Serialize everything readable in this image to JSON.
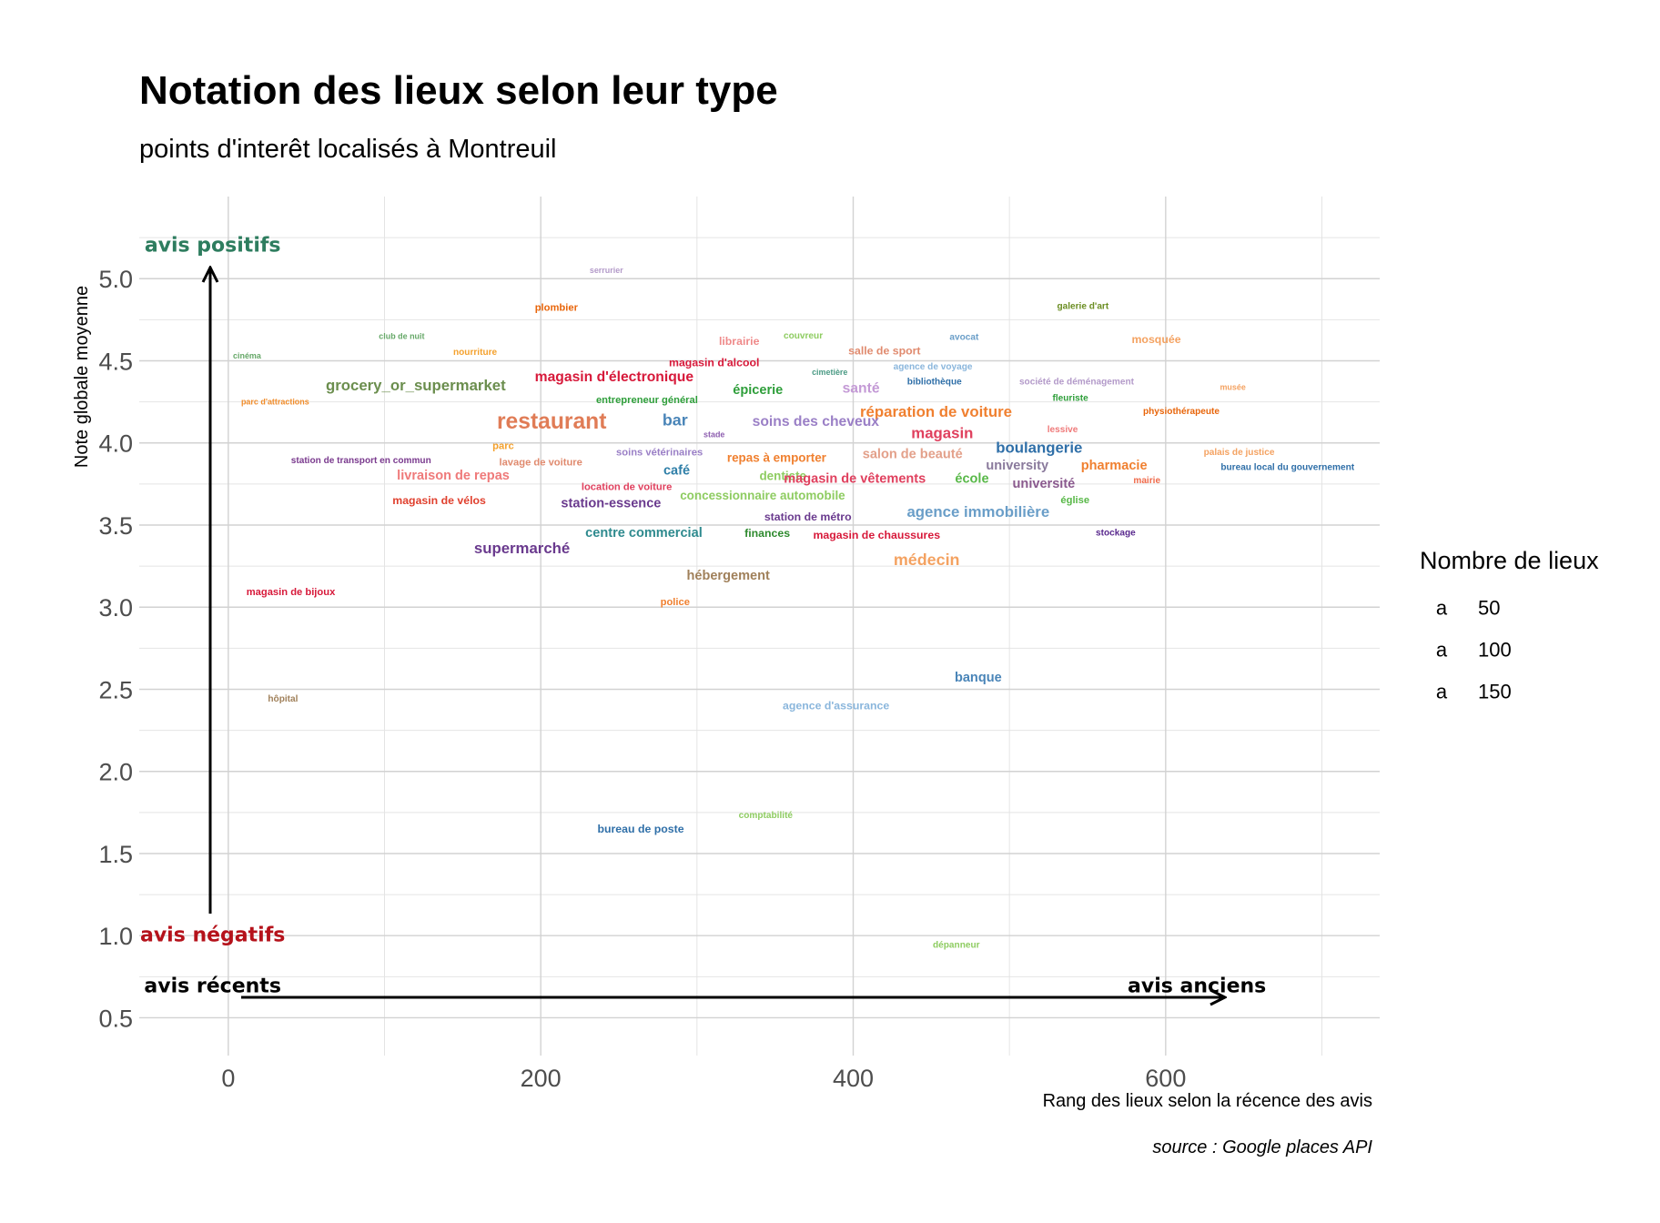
{
  "chart_data": {
    "type": "scatter",
    "title": "Notation des lieux selon leur type",
    "subtitle": "points d'interêt localisés à Montreuil",
    "xlabel": "Rang des lieux selon la récence des avis",
    "ylabel": "Note globale moyenne",
    "caption": "source : Google places API",
    "xlim": [
      -57,
      737
    ],
    "ylim": [
      0.27,
      5.5
    ],
    "x_ticks": [
      0,
      200,
      400,
      600
    ],
    "y_ticks": [
      0.5,
      1.0,
      1.5,
      2.0,
      2.5,
      3.0,
      3.5,
      4.0,
      4.5,
      5.0
    ],
    "grid": true,
    "legend": {
      "title": "Nombre de lieux",
      "position": "right",
      "entries": [
        {
          "label": "50",
          "glyph": "a",
          "size": 50
        },
        {
          "label": "100",
          "glyph": "a",
          "size": 100
        },
        {
          "label": "150",
          "glyph": "a",
          "size": 150
        }
      ]
    },
    "annotations": [
      {
        "text": "avis positifs",
        "color": "#2e7d5f",
        "x": -10,
        "y": 5.2
      },
      {
        "text": "avis négatifs",
        "color": "#b5121b",
        "x": -10,
        "y": 1.0
      },
      {
        "text": "avis récents",
        "color": "#000000",
        "x": -10,
        "y": 0.69
      },
      {
        "text": "avis anciens",
        "color": "#000000",
        "x": 620,
        "y": 0.69
      }
    ],
    "points": [
      {
        "label": "serrurier",
        "x": 242,
        "y": 5.05,
        "size": 8,
        "color": "#b39ac9"
      },
      {
        "label": "plombier",
        "x": 210,
        "y": 4.82,
        "size": 10,
        "color": "#e8650a"
      },
      {
        "label": "galerie d'art",
        "x": 547,
        "y": 4.83,
        "size": 9,
        "color": "#6b8e23"
      },
      {
        "label": "club de nuit",
        "x": 111,
        "y": 4.65,
        "size": 8,
        "color": "#66a868"
      },
      {
        "label": "librairie",
        "x": 327,
        "y": 4.62,
        "size": 11,
        "color": "#ef8a8a"
      },
      {
        "label": "couvreur",
        "x": 368,
        "y": 4.65,
        "size": 9,
        "color": "#8ecc61"
      },
      {
        "label": "avocat",
        "x": 471,
        "y": 4.64,
        "size": 9,
        "color": "#6a9ec8"
      },
      {
        "label": "mosquée",
        "x": 594,
        "y": 4.63,
        "size": 11,
        "color": "#f4a261"
      },
      {
        "label": "cinéma",
        "x": 12,
        "y": 4.53,
        "size": 8,
        "color": "#66a868"
      },
      {
        "label": "nourriture",
        "x": 158,
        "y": 4.55,
        "size": 9,
        "color": "#f4a12d"
      },
      {
        "label": "salle de sport",
        "x": 420,
        "y": 4.56,
        "size": 11,
        "color": "#e08a6e"
      },
      {
        "label": "magasin d'alcool",
        "x": 311,
        "y": 4.49,
        "size": 11,
        "color": "#d7193a"
      },
      {
        "label": "cimetière",
        "x": 385,
        "y": 4.43,
        "size": 8,
        "color": "#4a9a84"
      },
      {
        "label": "agence de voyage",
        "x": 451,
        "y": 4.46,
        "size": 9,
        "color": "#8ab6dc"
      },
      {
        "label": "magasin d'électronique",
        "x": 247,
        "y": 4.4,
        "size": 14,
        "color": "#d7193a"
      },
      {
        "label": "grocery_or_supermarket",
        "x": 120,
        "y": 4.35,
        "size": 15,
        "color": "#6b8e4e"
      },
      {
        "label": "épicerie",
        "x": 339,
        "y": 4.32,
        "size": 13,
        "color": "#2e9e3a"
      },
      {
        "label": "santé",
        "x": 405,
        "y": 4.33,
        "size": 14,
        "color": "#c49ad6"
      },
      {
        "label": "bibliothèque",
        "x": 452,
        "y": 4.37,
        "size": 9,
        "color": "#2f6fa8"
      },
      {
        "label": "société de déménagement",
        "x": 543,
        "y": 4.37,
        "size": 9,
        "color": "#b39ac9"
      },
      {
        "label": "musée",
        "x": 643,
        "y": 4.34,
        "size": 8,
        "color": "#f4a261"
      },
      {
        "label": "parc d'attractions",
        "x": 30,
        "y": 4.25,
        "size": 8,
        "color": "#f08c2a"
      },
      {
        "label": "entrepreneur général",
        "x": 268,
        "y": 4.26,
        "size": 10,
        "color": "#2e9e3a"
      },
      {
        "label": "fleuriste",
        "x": 539,
        "y": 4.27,
        "size": 9,
        "color": "#2e9e3a"
      },
      {
        "label": "réparation de voiture",
        "x": 453,
        "y": 4.19,
        "size": 15,
        "color": "#f08030"
      },
      {
        "label": "physiothérapeute",
        "x": 610,
        "y": 4.19,
        "size": 9,
        "color": "#e8650a"
      },
      {
        "label": "restaurant",
        "x": 207,
        "y": 4.13,
        "size": 22,
        "color": "#e07c56"
      },
      {
        "label": "bar",
        "x": 286,
        "y": 4.14,
        "size": 16,
        "color": "#4a85b8"
      },
      {
        "label": "soins des cheveux",
        "x": 376,
        "y": 4.13,
        "size": 14,
        "color": "#9a7fc6"
      },
      {
        "label": "magasin",
        "x": 457,
        "y": 4.06,
        "size": 15,
        "color": "#e0405e"
      },
      {
        "label": "lessive",
        "x": 534,
        "y": 4.08,
        "size": 9,
        "color": "#ef7a7a"
      },
      {
        "label": "stade",
        "x": 311,
        "y": 4.05,
        "size": 8,
        "color": "#8e5fb0"
      },
      {
        "label": "parc",
        "x": 176,
        "y": 3.98,
        "size": 10,
        "color": "#f4a12d"
      },
      {
        "label": "boulangerie",
        "x": 519,
        "y": 3.97,
        "size": 15,
        "color": "#2f6fa8"
      },
      {
        "label": "palais de justice",
        "x": 647,
        "y": 3.94,
        "size": 9,
        "color": "#f4a261"
      },
      {
        "label": "soins vétérinaires",
        "x": 276,
        "y": 3.94,
        "size": 10,
        "color": "#9a7fc6"
      },
      {
        "label": "repas à emporter",
        "x": 351,
        "y": 3.91,
        "size": 12,
        "color": "#f08030"
      },
      {
        "label": "salon de beauté",
        "x": 438,
        "y": 3.93,
        "size": 13,
        "color": "#e3a08a"
      },
      {
        "label": "station de transport en commun",
        "x": 85,
        "y": 3.89,
        "size": 9,
        "color": "#7a3a8e"
      },
      {
        "label": "lavage de voiture",
        "x": 200,
        "y": 3.88,
        "size": 10,
        "color": "#e08a6e"
      },
      {
        "label": "university",
        "x": 505,
        "y": 3.86,
        "size": 13,
        "color": "#8a7a9c"
      },
      {
        "label": "pharmacie",
        "x": 567,
        "y": 3.86,
        "size": 13,
        "color": "#f08030"
      },
      {
        "label": "bureau local du gouvernement",
        "x": 678,
        "y": 3.85,
        "size": 9,
        "color": "#2f6fa8"
      },
      {
        "label": "café",
        "x": 287,
        "y": 3.83,
        "size": 13,
        "color": "#2f7fa8"
      },
      {
        "label": "livraison de repas",
        "x": 144,
        "y": 3.8,
        "size": 13,
        "color": "#ef7a7a"
      },
      {
        "label": "dentiste",
        "x": 355,
        "y": 3.8,
        "size": 12,
        "color": "#8ecc61"
      },
      {
        "label": "magasin de vêtements",
        "x": 401,
        "y": 3.78,
        "size": 13,
        "color": "#e0405e"
      },
      {
        "label": "école",
        "x": 476,
        "y": 3.78,
        "size": 13,
        "color": "#58b848"
      },
      {
        "label": "université",
        "x": 522,
        "y": 3.75,
        "size": 13,
        "color": "#8a5a8e"
      },
      {
        "label": "mairie",
        "x": 588,
        "y": 3.77,
        "size": 9,
        "color": "#ef6a4a"
      },
      {
        "label": "location de voiture",
        "x": 255,
        "y": 3.73,
        "size": 10,
        "color": "#e0405e"
      },
      {
        "label": "concessionnaire automobile",
        "x": 342,
        "y": 3.68,
        "size": 12,
        "color": "#8ecc61"
      },
      {
        "label": "magasin de vélos",
        "x": 135,
        "y": 3.65,
        "size": 11,
        "color": "#e0402e"
      },
      {
        "label": "station-essence",
        "x": 245,
        "y": 3.63,
        "size": 13,
        "color": "#6a3a8e"
      },
      {
        "label": "église",
        "x": 542,
        "y": 3.65,
        "size": 10,
        "color": "#58b848"
      },
      {
        "label": "agence immobilière",
        "x": 480,
        "y": 3.58,
        "size": 15,
        "color": "#6a9ec8"
      },
      {
        "label": "station de métro",
        "x": 371,
        "y": 3.55,
        "size": 11,
        "color": "#6a3a8e"
      },
      {
        "label": "centre commercial",
        "x": 266,
        "y": 3.45,
        "size": 13,
        "color": "#2e8a8e"
      },
      {
        "label": "finances",
        "x": 345,
        "y": 3.45,
        "size": 11,
        "color": "#2e8a2e"
      },
      {
        "label": "magasin de chaussures",
        "x": 415,
        "y": 3.44,
        "size": 11,
        "color": "#d7193a"
      },
      {
        "label": "stockage",
        "x": 568,
        "y": 3.45,
        "size": 9,
        "color": "#5a2a8e"
      },
      {
        "label": "supermarché",
        "x": 188,
        "y": 3.36,
        "size": 15,
        "color": "#6a3a8e"
      },
      {
        "label": "médecin",
        "x": 447,
        "y": 3.29,
        "size": 16,
        "color": "#f4a261"
      },
      {
        "label": "hébergement",
        "x": 320,
        "y": 3.19,
        "size": 13,
        "color": "#a0805a"
      },
      {
        "label": "magasin de bijoux",
        "x": 40,
        "y": 3.09,
        "size": 10,
        "color": "#d7193a"
      },
      {
        "label": "police",
        "x": 286,
        "y": 3.03,
        "size": 10,
        "color": "#f08030"
      },
      {
        "label": "banque",
        "x": 480,
        "y": 2.57,
        "size": 13,
        "color": "#4a85b8"
      },
      {
        "label": "hôpital",
        "x": 35,
        "y": 2.44,
        "size": 9,
        "color": "#a0805a"
      },
      {
        "label": "agence d'assurance",
        "x": 389,
        "y": 2.4,
        "size": 11,
        "color": "#8ab6dc"
      },
      {
        "label": "comptabilité",
        "x": 344,
        "y": 1.73,
        "size": 9,
        "color": "#8ecc61"
      },
      {
        "label": "bureau de poste",
        "x": 264,
        "y": 1.65,
        "size": 11,
        "color": "#2f6fa8"
      },
      {
        "label": "dépanneur",
        "x": 466,
        "y": 0.94,
        "size": 9,
        "color": "#8ecc61"
      }
    ]
  }
}
